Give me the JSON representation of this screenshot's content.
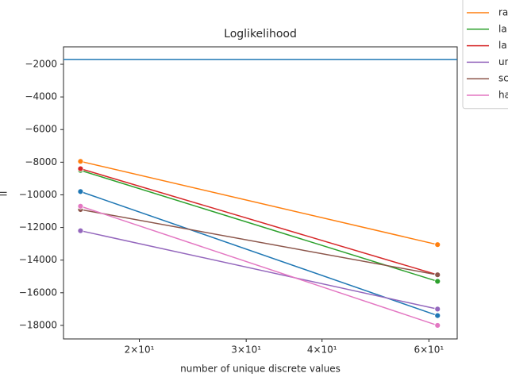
{
  "chart_data": {
    "type": "line",
    "title": "Loglikelihood",
    "xlabel": "number of unique discrete values",
    "ylabel": "ll",
    "log_x": true,
    "x": [
      16,
      62
    ],
    "series": [
      {
        "color": "#1f77b4",
        "values": [
          -9800,
          -17400
        ]
      },
      {
        "name": "ra",
        "color": "#ff7f0e",
        "values": [
          -7950,
          -13050
        ]
      },
      {
        "name": "la",
        "color": "#2ca02c",
        "values": [
          -8500,
          -15300
        ]
      },
      {
        "name": "la",
        "color": "#d62728",
        "values": [
          -8400,
          -14900
        ]
      },
      {
        "name": "ur",
        "color": "#9467bd",
        "values": [
          -12200,
          -17000
        ]
      },
      {
        "name": "sc",
        "color": "#8c564b",
        "values": [
          -10900,
          -14900
        ]
      },
      {
        "name": "ha",
        "color": "#e377c2",
        "values": [
          -10700,
          -18000
        ]
      }
    ],
    "hline": {
      "value": -1700,
      "color": "#1f77b4"
    },
    "xlim": [
      15,
      66.8
    ],
    "ylim": [
      -18830,
      -930
    ],
    "xticks": [
      {
        "value": 20,
        "label": "2×10¹"
      },
      {
        "value": 30,
        "label": "3×10¹"
      },
      {
        "value": 40,
        "label": "4×10¹"
      },
      {
        "value": 60,
        "label": "6×10¹"
      }
    ],
    "yticks": [
      {
        "value": -2000,
        "label": "−2000"
      },
      {
        "value": -4000,
        "label": "−4000"
      },
      {
        "value": -6000,
        "label": "−6000"
      },
      {
        "value": -8000,
        "label": "−8000"
      },
      {
        "value": -10000,
        "label": "−10000"
      },
      {
        "value": -12000,
        "label": "−12000"
      },
      {
        "value": -14000,
        "label": "−14000"
      },
      {
        "value": -16000,
        "label": "−16000"
      },
      {
        "value": -18000,
        "label": "−18000"
      }
    ],
    "legend": "outside-upper-right"
  }
}
